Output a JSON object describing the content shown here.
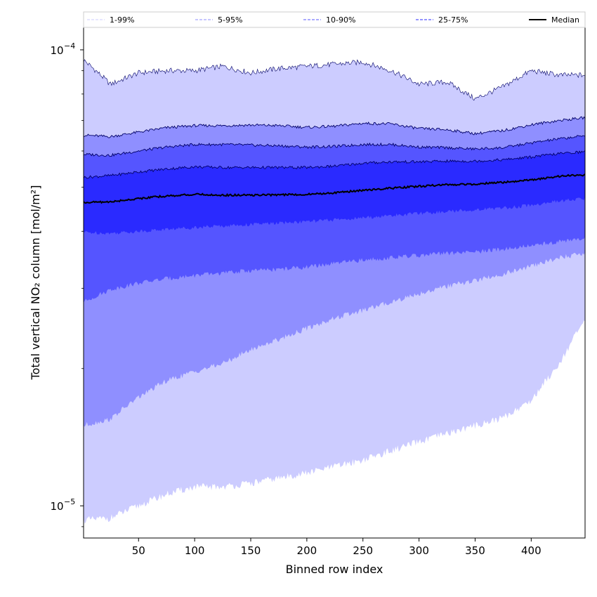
{
  "chart_data": {
    "type": "area",
    "title": "",
    "xlabel": "Binned row index",
    "ylabel": "Total vertical NO₂ column [mol/m²]",
    "xlim": [
      1,
      448
    ],
    "ylim": [
      8.5e-06,
      0.000112
    ],
    "yscale": "log",
    "grid": false,
    "legend_position": "top",
    "x_ticks": [
      50,
      100,
      150,
      200,
      250,
      300,
      350,
      400
    ],
    "y_ticks": [
      {
        "value": 1e-05,
        "base": "10",
        "exp": "−5"
      },
      {
        "value": 0.0001,
        "base": "10",
        "exp": "−4"
      }
    ],
    "x": [
      1,
      25,
      50,
      75,
      100,
      125,
      150,
      175,
      200,
      225,
      250,
      275,
      300,
      325,
      350,
      375,
      400,
      425,
      448
    ],
    "bands": [
      {
        "name": "1-99%",
        "color": "#ccccff",
        "lower": [
          9.3e-06,
          9.4e-06,
          1e-05,
          1.06e-05,
          1.1e-05,
          1.1e-05,
          1.12e-05,
          1.15e-05,
          1.18e-05,
          1.22e-05,
          1.26e-05,
          1.32e-05,
          1.38e-05,
          1.44e-05,
          1.5e-05,
          1.56e-05,
          1.7e-05,
          2.05e-05,
          2.55e-05
        ],
        "upper": [
          9.5e-05,
          8.4e-05,
          8.9e-05,
          9e-05,
          9e-05,
          9.2e-05,
          8.9e-05,
          9.1e-05,
          9.2e-05,
          9.3e-05,
          9.4e-05,
          9e-05,
          8.4e-05,
          8.5e-05,
          7.8e-05,
          8.3e-05,
          9e-05,
          8.8e-05,
          8.8e-05
        ]
      },
      {
        "name": "5-95%",
        "color": "#8f8fff",
        "lower": [
          1.5e-05,
          1.55e-05,
          1.73e-05,
          1.88e-05,
          1.97e-05,
          2.05e-05,
          2.2e-05,
          2.32e-05,
          2.45e-05,
          2.58e-05,
          2.68e-05,
          2.8e-05,
          2.92e-05,
          3.03e-05,
          3.12e-05,
          3.22e-05,
          3.35e-05,
          3.5e-05,
          3.58e-05
        ]
      },
      {
        "name": "10-90%",
        "color": "#5555ff",
        "lower": [
          2.8e-05,
          2.98e-05,
          3.08e-05,
          3.15e-05,
          3.2e-05,
          3.24e-05,
          3.28e-05,
          3.3e-05,
          3.34e-05,
          3.4e-05,
          3.46e-05,
          3.5e-05,
          3.54e-05,
          3.58e-05,
          3.6e-05,
          3.66e-05,
          3.72e-05,
          3.8e-05,
          3.85e-05
        ]
      },
      {
        "name": "25-75%",
        "color": "#2a2aff",
        "lower": [
          3.98e-05,
          3.96e-05,
          4e-05,
          4.04e-05,
          4.08e-05,
          4.11e-05,
          4.14e-05,
          4.17e-05,
          4.2e-05,
          4.24e-05,
          4.28e-05,
          4.33e-05,
          4.38e-05,
          4.42e-05,
          4.46e-05,
          4.5e-05,
          4.56e-05,
          4.66e-05,
          4.72e-05
        ]
      }
    ],
    "upper_quantiles": [
      {
        "name": "95%",
        "values": [
          6.5e-05,
          6.45e-05,
          6.6e-05,
          6.75e-05,
          6.82e-05,
          6.82e-05,
          6.84e-05,
          6.82e-05,
          6.76e-05,
          6.8e-05,
          6.9e-05,
          6.88e-05,
          6.72e-05,
          6.68e-05,
          6.55e-05,
          6.65e-05,
          6.85e-05,
          7e-05,
          7.1e-05
        ]
      },
      {
        "name": "90%",
        "values": [
          5.9e-05,
          5.87e-05,
          6e-05,
          6.12e-05,
          6.2e-05,
          6.2e-05,
          6.18e-05,
          6.16e-05,
          6.12e-05,
          6.14e-05,
          6.2e-05,
          6.2e-05,
          6.12e-05,
          6.1e-05,
          6.06e-05,
          6.1e-05,
          6.25e-05,
          6.38e-05,
          6.48e-05
        ]
      },
      {
        "name": "75%",
        "values": [
          5.25e-05,
          5.3e-05,
          5.4e-05,
          5.48e-05,
          5.54e-05,
          5.52e-05,
          5.52e-05,
          5.52e-05,
          5.52e-05,
          5.56e-05,
          5.64e-05,
          5.68e-05,
          5.68e-05,
          5.7e-05,
          5.7e-05,
          5.74e-05,
          5.82e-05,
          5.92e-05,
          5.98e-05
        ]
      }
    ],
    "median": {
      "name": "Median",
      "values": [
        4.63e-05,
        4.64e-05,
        4.72e-05,
        4.78e-05,
        4.82e-05,
        4.8e-05,
        4.8e-05,
        4.81e-05,
        4.82e-05,
        4.86e-05,
        4.92e-05,
        4.97e-05,
        5.02e-05,
        5.06e-05,
        5.08e-05,
        5.12e-05,
        5.18e-05,
        5.28e-05,
        5.32e-05
      ]
    },
    "legend": [
      {
        "label": "1-99%",
        "color": "#ccccff",
        "style": "dashed"
      },
      {
        "label": "5-95%",
        "color": "#8f8fff",
        "style": "dashed"
      },
      {
        "label": "10-90%",
        "color": "#5555ff",
        "style": "dashed"
      },
      {
        "label": "25-75%",
        "color": "#2a2aff",
        "style": "dashed"
      },
      {
        "label": "Median",
        "color": "#000000",
        "style": "solid"
      }
    ]
  }
}
